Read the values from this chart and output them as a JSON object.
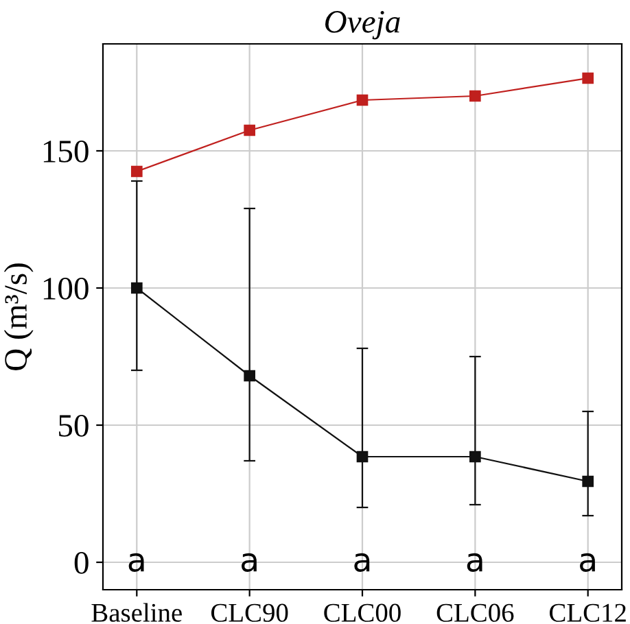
{
  "chart_data": {
    "type": "line",
    "title": "Oveja",
    "ylabel": "Q (m³/s)",
    "categories": [
      "Baseline",
      "CLC90",
      "CLC00",
      "CLC06",
      "CLC12"
    ],
    "series": [
      {
        "color": "#c0201e",
        "values": [
          142.5,
          157.5,
          168.5,
          170,
          176.5
        ]
      },
      {
        "color": "#111111",
        "values": [
          100,
          68,
          38.5,
          38.5,
          29.5
        ],
        "errors": [
          [
            70,
            139
          ],
          [
            37,
            129
          ],
          [
            20,
            78
          ],
          [
            21,
            75
          ],
          [
            17,
            55
          ]
        ]
      }
    ],
    "annotations": [
      "a",
      "a",
      "a",
      "a",
      "a"
    ],
    "ylim": [
      -10,
      189
    ],
    "yticks": [
      0,
      50,
      100,
      150
    ],
    "grid": true,
    "marker": "square",
    "line_style": "solid"
  }
}
